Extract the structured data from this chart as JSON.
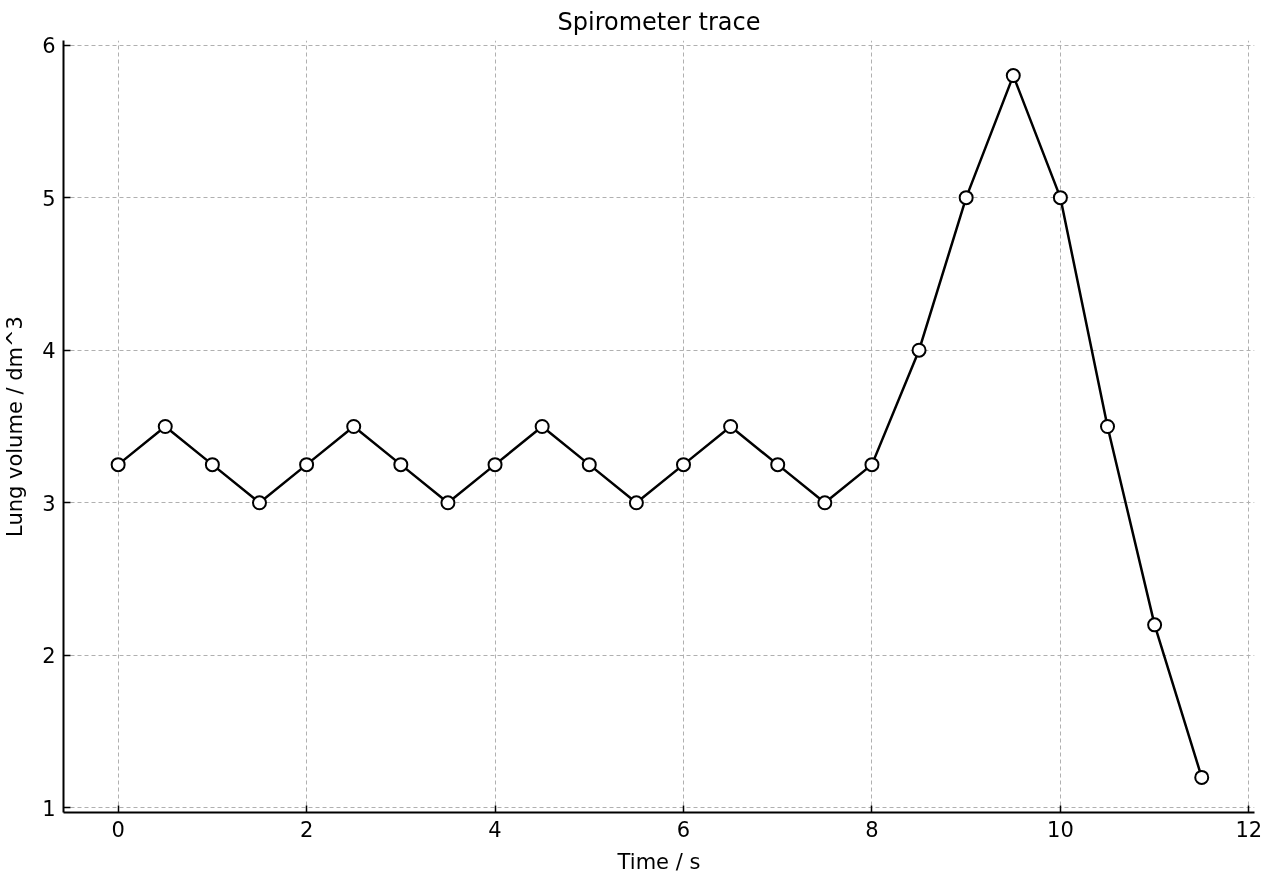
{
  "chart_data": {
    "type": "line",
    "title": "Spirometer trace",
    "xlabel": "Time / s",
    "ylabel": "Lung volume / dm^3",
    "x": [
      0,
      0.5,
      1,
      1.5,
      2,
      2.5,
      3,
      3.5,
      4,
      4.5,
      5,
      5.5,
      6,
      6.5,
      7,
      7.5,
      8,
      8.5,
      9,
      9.5,
      10,
      10.5,
      11,
      11.5
    ],
    "series": [
      {
        "color": "#000000",
        "values": [
          3.25,
          3.5,
          3.25,
          3.0,
          3.25,
          3.5,
          3.25,
          3.0,
          3.25,
          3.5,
          3.25,
          3.0,
          3.25,
          3.5,
          3.25,
          3.0,
          3.25,
          4.0,
          5.0,
          5.8,
          5.0,
          3.5,
          2.2,
          1.2
        ]
      }
    ],
    "xlim": [
      -0.58,
      12.06
    ],
    "ylim": [
      0.97,
      6.03
    ],
    "xticks": [
      0,
      2,
      4,
      6,
      8,
      10,
      12
    ],
    "yticks": [
      1,
      2,
      3,
      4,
      5,
      6
    ],
    "grid": true,
    "marker": "circle",
    "line_style": "solid"
  }
}
